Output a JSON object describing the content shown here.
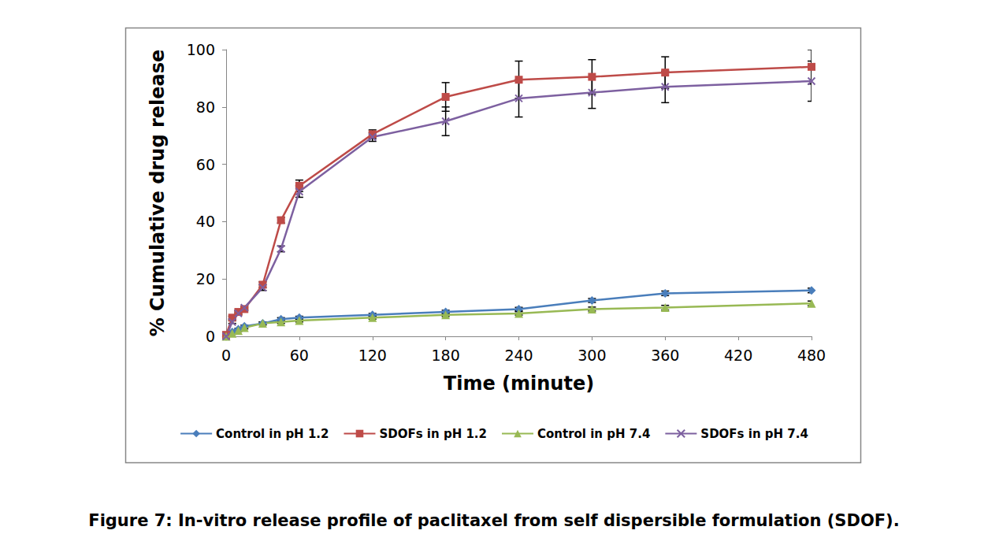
{
  "chart_data": {
    "type": "line",
    "title": "Figure 7: In-vitro release profile of paclitaxel from self dispersible formulation (SDOF).",
    "x_label": "Time (minute)",
    "y_label": "% Cumulative drug release",
    "x": [
      0,
      5,
      10,
      15,
      30,
      45,
      60,
      120,
      180,
      240,
      300,
      360,
      480
    ],
    "xlim": [
      0,
      480
    ],
    "xticks": [
      0,
      60,
      120,
      180,
      240,
      300,
      360,
      420,
      480
    ],
    "ylim": [
      0,
      100
    ],
    "yticks": [
      0,
      20,
      40,
      60,
      80,
      100
    ],
    "grid": false,
    "legend": "bottom",
    "series": [
      {
        "name": "Control in pH 1.2",
        "color": "#4a7ebb",
        "marker": "diamond",
        "values": [
          0,
          1.5,
          2.5,
          3.5,
          4.5,
          6,
          6.5,
          7.5,
          8.5,
          9.5,
          12.5,
          15,
          16
        ],
        "errors": [
          0,
          0.3,
          0.3,
          0.4,
          0.5,
          0.5,
          0.5,
          0.5,
          0.6,
          0.6,
          0.7,
          0.8,
          0.8
        ]
      },
      {
        "name": "SDOFs in pH 1.2",
        "color": "#be4b48",
        "marker": "square",
        "values": [
          0.5,
          6.5,
          8.5,
          9.5,
          18,
          40.5,
          52.5,
          70.5,
          83.5,
          89.5,
          90.5,
          92,
          94
        ],
        "errors": [
          0,
          0.5,
          0.5,
          0.5,
          1,
          1,
          2,
          1.5,
          5,
          6.5,
          6,
          5.5,
          6
        ]
      },
      {
        "name": "Control in pH 7.4",
        "color": "#98b954",
        "marker": "triangle",
        "values": [
          0,
          1,
          2,
          3,
          4.5,
          5,
          5.5,
          6.5,
          7.5,
          8,
          9.5,
          10,
          11.5
        ],
        "errors": [
          0,
          0.3,
          0.3,
          0.4,
          0.5,
          0.5,
          0.5,
          0.5,
          0.6,
          0.6,
          0.7,
          0.8,
          0.8
        ]
      },
      {
        "name": "SDOFs in pH 7.4",
        "color": "#7d60a0",
        "marker": "x",
        "values": [
          0,
          5,
          8,
          10,
          17,
          30.5,
          50.5,
          69.5,
          75,
          83,
          85,
          87,
          89
        ],
        "errors": [
          0,
          0.5,
          0.5,
          0.5,
          1,
          1,
          2,
          1.5,
          5,
          6.5,
          5.5,
          5.5,
          7
        ]
      }
    ]
  }
}
